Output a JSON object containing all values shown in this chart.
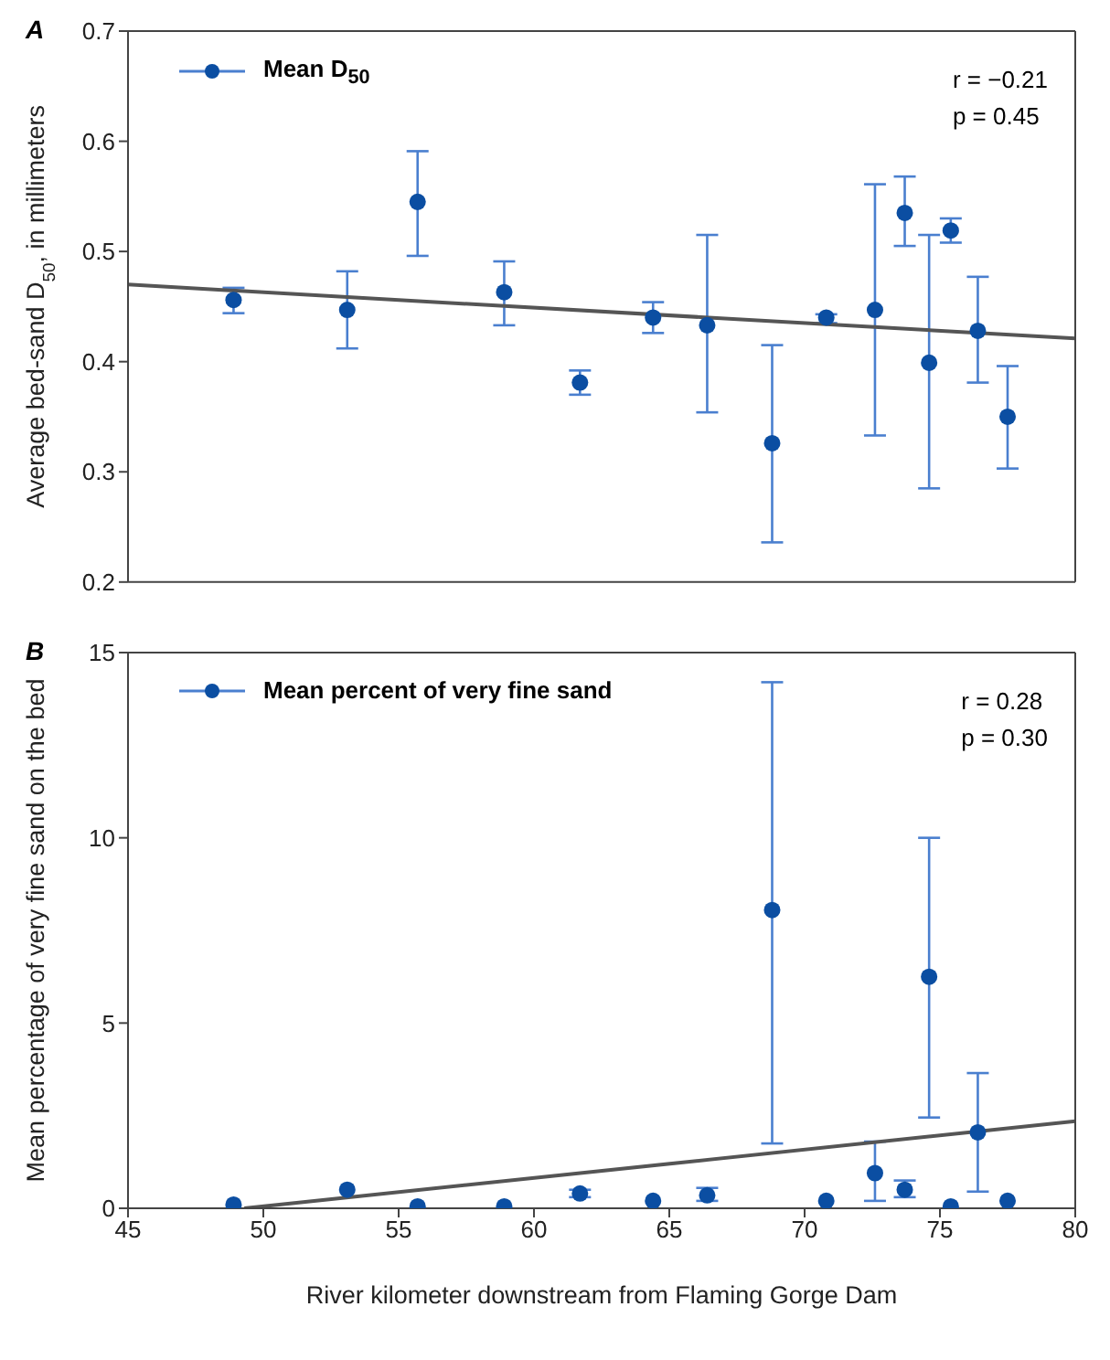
{
  "chart_data": [
    {
      "type": "scatter",
      "title": "A",
      "ylabel": "Average bed-sand D$_{50}$, in millimeters",
      "xlim": [
        45,
        80
      ],
      "xticks": [
        45,
        50,
        55,
        60,
        65,
        70,
        75,
        80
      ],
      "ylim": [
        0.2,
        0.7
      ],
      "yticks": [
        0.2,
        0.3,
        0.4,
        0.5,
        0.6,
        0.7
      ],
      "tick_labels": "y",
      "legend": "top left",
      "annotations": [
        "r = −0.21",
        "p = 0.45"
      ],
      "series": [
        {
          "name": "Mean D$_{50}$",
          "marker": "circle",
          "color": "#0b4ea2",
          "x": [
            48.9,
            53.1,
            55.7,
            58.9,
            61.7,
            64.4,
            66.4,
            68.8,
            70.8,
            72.6,
            73.7,
            74.6,
            75.4,
            76.4,
            77.5
          ],
          "values": [
            0.456,
            0.447,
            0.545,
            0.463,
            0.381,
            0.44,
            0.433,
            0.326,
            0.44,
            0.447,
            0.535,
            0.399,
            0.519,
            0.428,
            0.35
          ],
          "errors": [
            [
              0.444,
              0.467
            ],
            [
              0.412,
              0.482
            ],
            [
              0.496,
              0.591
            ],
            [
              0.433,
              0.491
            ],
            [
              0.37,
              0.392
            ],
            [
              0.426,
              0.454
            ],
            [
              0.354,
              0.515
            ],
            [
              0.236,
              0.415
            ],
            [
              0.435,
              0.443
            ],
            [
              0.333,
              0.561
            ],
            [
              0.505,
              0.568
            ],
            [
              0.285,
              0.515
            ],
            [
              0.508,
              0.53
            ],
            [
              0.381,
              0.477
            ],
            [
              0.303,
              0.396
            ]
          ]
        },
        {
          "type": "line",
          "color": "#555555",
          "line_style": "solid",
          "x": [
            45,
            80
          ],
          "values": [
            0.47,
            0.421
          ]
        }
      ]
    },
    {
      "type": "scatter",
      "title": "B",
      "xlabel": "River kilometer downstream from Flaming Gorge Dam",
      "ylabel": "Mean percentage of very fine sand on the bed",
      "xlim": [
        45,
        80
      ],
      "xticks": [
        45,
        50,
        55,
        60,
        65,
        70,
        75,
        80
      ],
      "ylim": [
        0,
        15
      ],
      "yticks": [
        0,
        5,
        10,
        15
      ],
      "legend": "top left",
      "annotations": [
        "r = 0.28",
        "p = 0.30"
      ],
      "series": [
        {
          "name": "Mean percent of very fine sand",
          "marker": "circle",
          "color": "#0b4ea2",
          "x": [
            48.9,
            53.1,
            55.7,
            58.9,
            61.7,
            64.4,
            66.4,
            68.8,
            70.8,
            72.6,
            73.7,
            74.6,
            75.4,
            76.4,
            77.5
          ],
          "values": [
            0.1,
            0.5,
            0.05,
            0.05,
            0.4,
            0.2,
            0.35,
            8.05,
            0.2,
            0.95,
            0.5,
            6.25,
            0.05,
            2.05,
            0.2
          ],
          "errors": [
            null,
            null,
            null,
            null,
            [
              0.3,
              0.5
            ],
            null,
            [
              0.2,
              0.55
            ],
            [
              1.75,
              14.2
            ],
            null,
            [
              0.2,
              1.8
            ],
            [
              0.3,
              0.75
            ],
            [
              2.45,
              10
            ],
            null,
            [
              0.45,
              3.65
            ],
            null
          ]
        },
        {
          "type": "line",
          "color": "#555555",
          "line_style": "solid",
          "x": [
            49.3,
            80
          ],
          "values": [
            0,
            2.35
          ]
        }
      ]
    }
  ]
}
